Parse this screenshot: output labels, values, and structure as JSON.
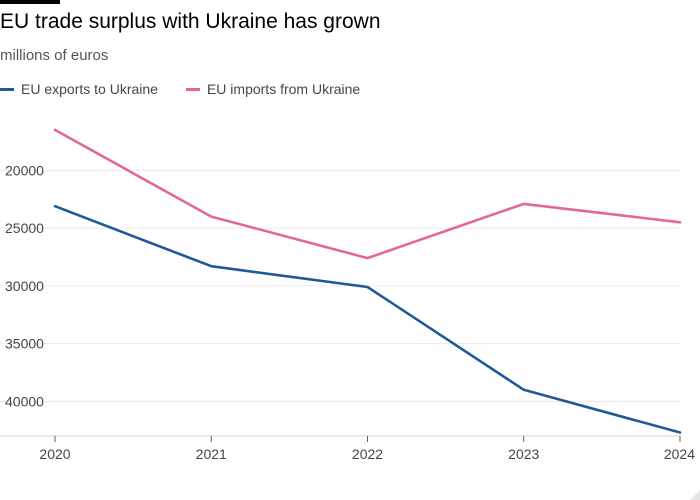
{
  "chart_data": {
    "type": "line",
    "title": "EU trade surplus with Ukraine has grown",
    "subtitle": "millions of euros",
    "xlabel": "",
    "ylabel": "",
    "x": [
      2020,
      2021,
      2022,
      2023,
      2024
    ],
    "series": [
      {
        "name": "EU exports to Ukraine",
        "color": "#1f5a96",
        "values": [
          23100,
          28300,
          30100,
          39000,
          42700
        ]
      },
      {
        "name": "EU imports from Ukraine",
        "color": "#e3679a",
        "values": [
          16500,
          24000,
          27600,
          22900,
          24500
        ]
      }
    ],
    "y_ticks": [
      20000,
      25000,
      30000,
      35000,
      40000
    ],
    "ylim": [
      14600,
      43000
    ],
    "y_axis_inverted": true,
    "grid": true,
    "legend_position": "top-left"
  }
}
